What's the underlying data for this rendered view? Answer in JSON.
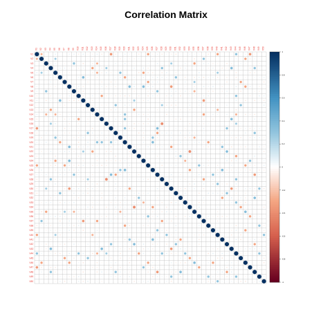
{
  "chart_data": {
    "type": "heatmap",
    "title": "Correlation Matrix",
    "n": 50,
    "labels": [
      "V1",
      "V2",
      "V3",
      "V4",
      "V5",
      "V6",
      "V7",
      "V8",
      "V9",
      "V10",
      "V11",
      "V12",
      "V13",
      "V14",
      "V15",
      "V16",
      "V17",
      "V18",
      "V19",
      "V20",
      "V21",
      "V22",
      "V23",
      "V24",
      "V25",
      "V26",
      "V27",
      "V28",
      "V29",
      "V30",
      "V31",
      "V32",
      "V33",
      "V34",
      "V35",
      "V36",
      "V37",
      "V38",
      "V39",
      "V40",
      "V41",
      "V42",
      "V43",
      "V44",
      "V45",
      "V46",
      "V47",
      "V48",
      "V49",
      "V50"
    ],
    "colorbar": {
      "min": -1,
      "max": 1,
      "ticks": [
        "1",
        "0.8",
        "0.6",
        "0.4",
        "0.2",
        "0",
        "-0.2",
        "-0.4",
        "-0.6",
        "-0.8",
        "-1"
      ]
    },
    "correlations": [
      [
        1,
        2,
        -0.25
      ],
      [
        1,
        17,
        -0.35
      ],
      [
        1,
        25,
        -0.3
      ],
      [
        1,
        40,
        -0.3
      ],
      [
        1,
        44,
        0.3
      ],
      [
        1,
        47,
        -0.35
      ],
      [
        2,
        5,
        0.25
      ],
      [
        2,
        37,
        0.3
      ],
      [
        2,
        46,
        -0.3
      ],
      [
        3,
        9,
        0.3
      ],
      [
        3,
        14,
        -0.25
      ],
      [
        3,
        30,
        0.25
      ],
      [
        3,
        35,
        -0.3
      ],
      [
        4,
        13,
        -0.3
      ],
      [
        4,
        16,
        0.25
      ],
      [
        4,
        28,
        0.3
      ],
      [
        4,
        43,
        0.35
      ],
      [
        4,
        48,
        0.3
      ],
      [
        5,
        14,
        -0.25
      ],
      [
        5,
        19,
        0.3
      ],
      [
        5,
        24,
        -0.3
      ],
      [
        5,
        40,
        0.25
      ],
      [
        6,
        11,
        0.35
      ],
      [
        6,
        20,
        -0.3
      ],
      [
        6,
        31,
        0.3
      ],
      [
        7,
        25,
        -0.3
      ],
      [
        7,
        35,
        0.25
      ],
      [
        7,
        45,
        -0.3
      ],
      [
        8,
        21,
        0.35
      ],
      [
        8,
        24,
        0.35
      ],
      [
        8,
        30,
        -0.35
      ],
      [
        8,
        46,
        -0.3
      ],
      [
        9,
        27,
        0.3
      ],
      [
        9,
        35,
        -0.25
      ],
      [
        10,
        15,
        -0.3
      ],
      [
        10,
        44,
        0.3
      ],
      [
        11,
        22,
        0.25
      ],
      [
        11,
        37,
        -0.35
      ],
      [
        12,
        18,
        0.3
      ],
      [
        12,
        28,
        0.25
      ],
      [
        12,
        45,
        0.3
      ],
      [
        13,
        22,
        -0.3
      ],
      [
        13,
        40,
        -0.25
      ],
      [
        14,
        20,
        0.3
      ],
      [
        14,
        37,
        -0.3
      ],
      [
        14,
        44,
        -0.25
      ],
      [
        15,
        20,
        0.3
      ],
      [
        15,
        43,
        0.35
      ],
      [
        16,
        28,
        -0.4
      ],
      [
        16,
        44,
        0.25
      ],
      [
        17,
        20,
        0.3
      ],
      [
        17,
        27,
        0.35
      ],
      [
        17,
        42,
        0.3
      ],
      [
        18,
        27,
        -0.3
      ],
      [
        18,
        48,
        0.3
      ],
      [
        19,
        26,
        0.3
      ],
      [
        19,
        35,
        -0.25
      ],
      [
        20,
        26,
        0.35
      ],
      [
        20,
        38,
        -0.3
      ],
      [
        21,
        30,
        -0.3
      ],
      [
        21,
        41,
        0.3
      ],
      [
        22,
        34,
        -0.4
      ],
      [
        22,
        42,
        0.35
      ],
      [
        23,
        32,
        0.3
      ],
      [
        23,
        44,
        -0.3
      ],
      [
        24,
        33,
        -0.25
      ],
      [
        24,
        47,
        0.3
      ],
      [
        25,
        36,
        0.3
      ],
      [
        25,
        46,
        -0.3
      ],
      [
        26,
        34,
        -0.3
      ],
      [
        26,
        41,
        0.35
      ],
      [
        27,
        39,
        0.3
      ],
      [
        27,
        48,
        -0.35
      ],
      [
        28,
        37,
        -0.3
      ],
      [
        28,
        44,
        0.3
      ],
      [
        29,
        40,
        0.3
      ],
      [
        30,
        43,
        -0.35
      ],
      [
        30,
        49,
        0.3
      ],
      [
        31,
        42,
        0.3
      ],
      [
        32,
        41,
        -0.3
      ],
      [
        32,
        48,
        0.35
      ],
      [
        33,
        44,
        0.3
      ],
      [
        34,
        45,
        -0.3
      ],
      [
        35,
        46,
        0.35
      ],
      [
        36,
        47,
        -0.3
      ],
      [
        38,
        49,
        0.3
      ],
      [
        39,
        46,
        -0.3
      ],
      [
        40,
        50,
        0.3
      ],
      [
        42,
        48,
        -0.3
      ],
      [
        44,
        49,
        0.3
      ]
    ]
  }
}
